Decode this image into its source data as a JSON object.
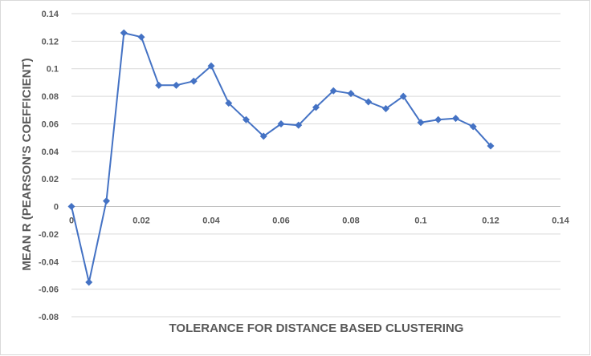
{
  "chart_data": {
    "type": "scatter",
    "title": "",
    "xlabel": "TOLERANCE FOR DISTANCE BASED CLUSTERING",
    "ylabel": "MEAN R (PEARSON'S COEFFICIENT)",
    "xlim": [
      0,
      0.14
    ],
    "ylim": [
      -0.08,
      0.14
    ],
    "x_ticks": [
      "0",
      "0.02",
      "0.04",
      "0.06",
      "0.08",
      "0.1",
      "0.12",
      "0.14"
    ],
    "y_ticks": [
      "0.14",
      "0.12",
      "0.1",
      "0.08",
      "0.06",
      "0.04",
      "0.02",
      "0",
      "-0.02",
      "-0.04",
      "-0.06",
      "-0.08"
    ],
    "grid": true,
    "legend": "none",
    "marker": "diamond",
    "line_color": "#4472c4",
    "series": [
      {
        "x": [
          0,
          0.005,
          0.01,
          0.015,
          0.02,
          0.025,
          0.03,
          0.035,
          0.04,
          0.045,
          0.05,
          0.055,
          0.06,
          0.065,
          0.07,
          0.075,
          0.08,
          0.085,
          0.09,
          0.095,
          0.1,
          0.105,
          0.11,
          0.115,
          0.12
        ],
        "y": [
          0,
          -0.055,
          0.004,
          0.126,
          0.123,
          0.088,
          0.088,
          0.091,
          0.102,
          0.075,
          0.063,
          0.051,
          0.06,
          0.059,
          0.072,
          0.084,
          0.082,
          0.076,
          0.071,
          0.08,
          0.061,
          0.063,
          0.064,
          0.058,
          0.044
        ]
      }
    ]
  }
}
